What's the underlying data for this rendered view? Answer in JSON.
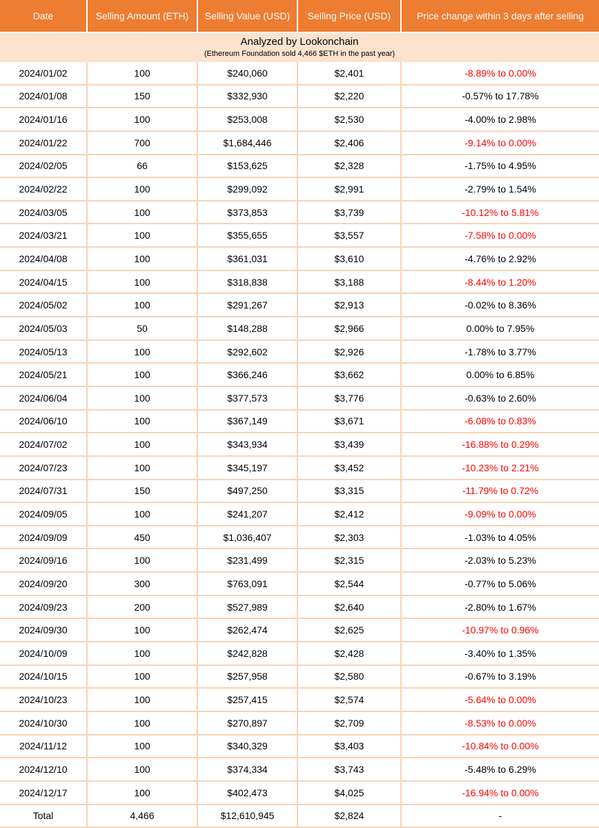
{
  "banner": {
    "title": "Analyzed by Lookonchain",
    "subtitle": "(Ethereum Foundation sold 4,466 $ETH in the past year)"
  },
  "chart_data": {
    "type": "table",
    "columns": [
      "Date",
      "Selling Amount (ETH)",
      "Selling Value (USD)",
      "Selling Price (USD)",
      "Price change within 3 days after selling"
    ],
    "rows": [
      {
        "date": "2024/01/02",
        "amount": "100",
        "value": "$240,060",
        "price": "$2,401",
        "change": "-8.89% to 0.00%",
        "highlight": "red"
      },
      {
        "date": "2024/01/08",
        "amount": "150",
        "value": "$332,930",
        "price": "$2,220",
        "change": "-0.57% to 17.78%",
        "highlight": "black"
      },
      {
        "date": "2024/01/16",
        "amount": "100",
        "value": "$253,008",
        "price": "$2,530",
        "change": "-4.00% to 2.98%",
        "highlight": "black"
      },
      {
        "date": "2024/01/22",
        "amount": "700",
        "value": "$1,684,446",
        "price": "$2,406",
        "change": "-9.14% to 0.00%",
        "highlight": "red"
      },
      {
        "date": "2024/02/05",
        "amount": "66",
        "value": "$153,625",
        "price": "$2,328",
        "change": "-1.75% to 4.95%",
        "highlight": "black"
      },
      {
        "date": "2024/02/22",
        "amount": "100",
        "value": "$299,092",
        "price": "$2,991",
        "change": "-2.79% to 1.54%",
        "highlight": "black"
      },
      {
        "date": "2024/03/05",
        "amount": "100",
        "value": "$373,853",
        "price": "$3,739",
        "change": "-10.12% to 5.81%",
        "highlight": "red"
      },
      {
        "date": "2024/03/21",
        "amount": "100",
        "value": "$355,655",
        "price": "$3,557",
        "change": "-7.58% to 0.00%",
        "highlight": "red"
      },
      {
        "date": "2024/04/08",
        "amount": "100",
        "value": "$361,031",
        "price": "$3,610",
        "change": "-4.76% to 2.92%",
        "highlight": "black"
      },
      {
        "date": "2024/04/15",
        "amount": "100",
        "value": "$318,838",
        "price": "$3,188",
        "change": "-8.44% to 1.20%",
        "highlight": "red"
      },
      {
        "date": "2024/05/02",
        "amount": "100",
        "value": "$291,267",
        "price": "$2,913",
        "change": "-0.02% to 8.36%",
        "highlight": "black"
      },
      {
        "date": "2024/05/03",
        "amount": "50",
        "value": "$148,288",
        "price": "$2,966",
        "change": "0.00% to 7.95%",
        "highlight": "black"
      },
      {
        "date": "2024/05/13",
        "amount": "100",
        "value": "$292,602",
        "price": "$2,926",
        "change": "-1.78% to 3.77%",
        "highlight": "black"
      },
      {
        "date": "2024/05/21",
        "amount": "100",
        "value": "$366,246",
        "price": "$3,662",
        "change": "0.00% to 6.85%",
        "highlight": "black"
      },
      {
        "date": "2024/06/04",
        "amount": "100",
        "value": "$377,573",
        "price": "$3,776",
        "change": "-0.63% to 2.60%",
        "highlight": "black"
      },
      {
        "date": "2024/06/10",
        "amount": "100",
        "value": "$367,149",
        "price": "$3,671",
        "change": "-6.08% to 0.83%",
        "highlight": "red"
      },
      {
        "date": "2024/07/02",
        "amount": "100",
        "value": "$343,934",
        "price": "$3,439",
        "change": "-16.88% to 0.29%",
        "highlight": "red"
      },
      {
        "date": "2024/07/23",
        "amount": "100",
        "value": "$345,197",
        "price": "$3,452",
        "change": "-10.23% to 2.21%",
        "highlight": "red"
      },
      {
        "date": "2024/07/31",
        "amount": "150",
        "value": "$497,250",
        "price": "$3,315",
        "change": "-11.79% to 0.72%",
        "highlight": "red"
      },
      {
        "date": "2024/09/05",
        "amount": "100",
        "value": "$241,207",
        "price": "$2,412",
        "change": "-9.09% to 0.00%",
        "highlight": "red"
      },
      {
        "date": "2024/09/09",
        "amount": "450",
        "value": "$1,036,407",
        "price": "$2,303",
        "change": "-1.03% to 4.05%",
        "highlight": "black"
      },
      {
        "date": "2024/09/16",
        "amount": "100",
        "value": "$231,499",
        "price": "$2,315",
        "change": "-2.03% to 5.23%",
        "highlight": "black"
      },
      {
        "date": "2024/09/20",
        "amount": "300",
        "value": "$763,091",
        "price": "$2,544",
        "change": "-0.77% to 5.06%",
        "highlight": "black"
      },
      {
        "date": "2024/09/23",
        "amount": "200",
        "value": "$527,989",
        "price": "$2,640",
        "change": "-2.80% to 1.67%",
        "highlight": "black"
      },
      {
        "date": "2024/09/30",
        "amount": "100",
        "value": "$262,474",
        "price": "$2,625",
        "change": "-10.97% to 0.96%",
        "highlight": "red"
      },
      {
        "date": "2024/10/09",
        "amount": "100",
        "value": "$242,828",
        "price": "$2,428",
        "change": "-3.40% to 1.35%",
        "highlight": "black"
      },
      {
        "date": "2024/10/15",
        "amount": "100",
        "value": "$257,958",
        "price": "$2,580",
        "change": "-0.67% to 3.19%",
        "highlight": "black"
      },
      {
        "date": "2024/10/23",
        "amount": "100",
        "value": "$257,415",
        "price": "$2,574",
        "change": "-5.64% to 0.00%",
        "highlight": "red"
      },
      {
        "date": "2024/10/30",
        "amount": "100",
        "value": "$270,897",
        "price": "$2,709",
        "change": "-8.53% to 0.00%",
        "highlight": "red"
      },
      {
        "date": "2024/11/12",
        "amount": "100",
        "value": "$340,329",
        "price": "$3,403",
        "change": "-10.84% to 0.00%",
        "highlight": "red"
      },
      {
        "date": "2024/12/10",
        "amount": "100",
        "value": "$374,334",
        "price": "$3,743",
        "change": "-5.48% to 6.29%",
        "highlight": "black"
      },
      {
        "date": "2024/12/17",
        "amount": "100",
        "value": "$402,473",
        "price": "$4,025",
        "change": "-16.94% to 0.00%",
        "highlight": "red"
      }
    ],
    "total": {
      "label": "Total",
      "amount": "4,466",
      "value": "$12,610,945",
      "price": "$2,824",
      "change": "-"
    }
  },
  "colors": {
    "header_bg": "#ED7D31",
    "header_text": "#FFFFFF",
    "banner_bg": "#FCE3D0",
    "row_border": "#F9D3B4",
    "negative_red": "#FF0000"
  }
}
